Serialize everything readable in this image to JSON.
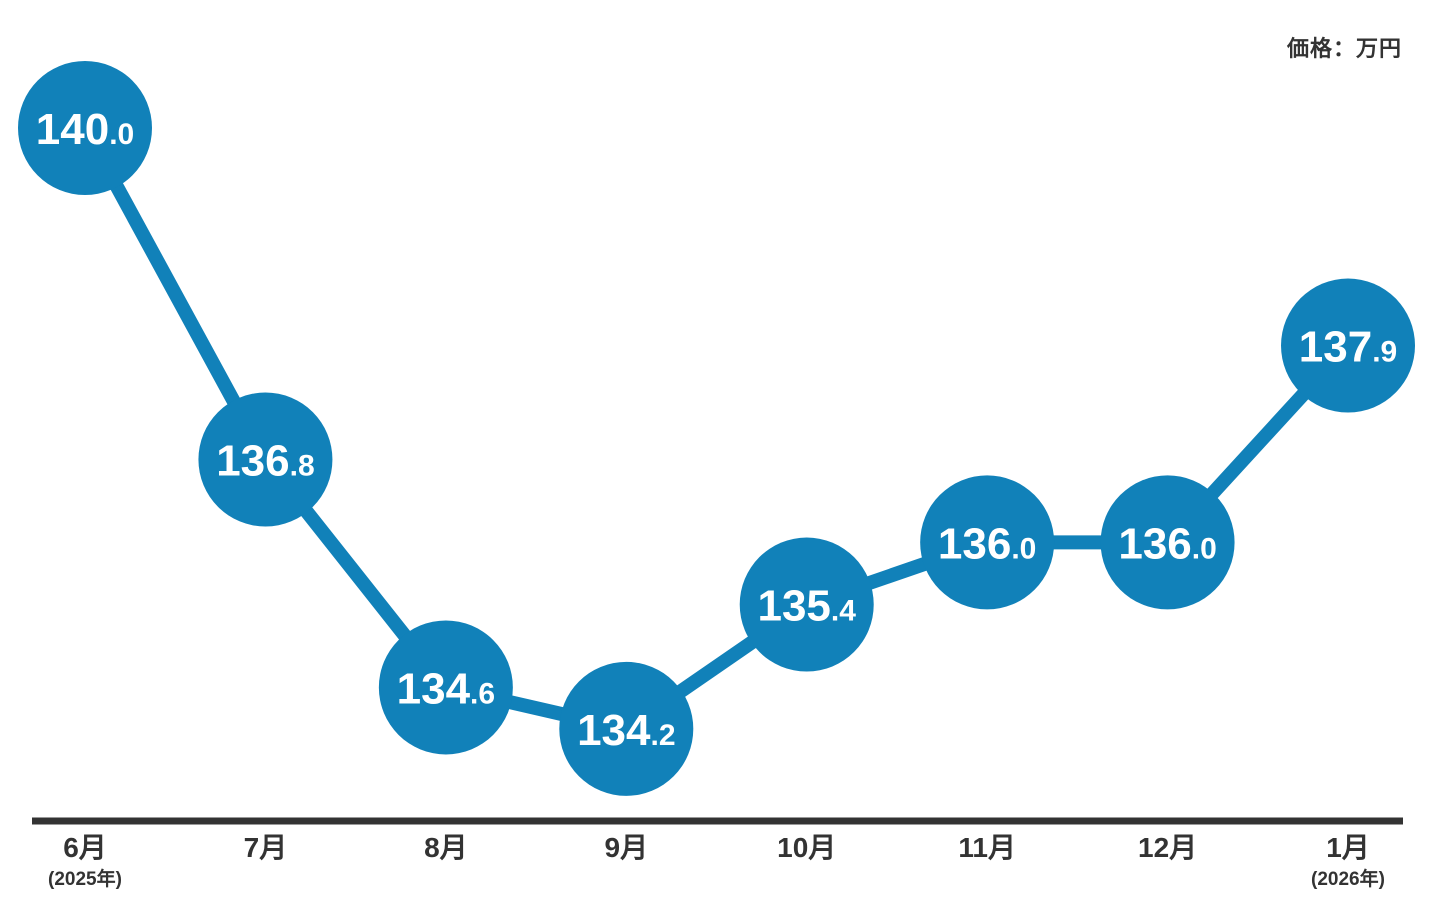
{
  "unit_label": "価格：万円",
  "chart_data": {
    "type": "line",
    "title": "",
    "xlabel": "",
    "ylabel": "価格（万円）",
    "categories": [
      "6月",
      "7月",
      "8月",
      "9月",
      "10月",
      "11月",
      "12月",
      "1月"
    ],
    "category_sub_labels": [
      "(2025年)",
      "",
      "",
      "",
      "",
      "",
      "",
      "(2026年)"
    ],
    "series": [
      {
        "name": "価格",
        "values": [
          140.0,
          136.8,
          134.6,
          134.2,
          135.4,
          136.0,
          136.0,
          137.9
        ]
      }
    ],
    "value_labels_shown": true,
    "value_decimals": 1,
    "ylim": [
      133.0,
      141.0
    ],
    "grid": false,
    "legend_position": "none",
    "accent_color": "#1181B9",
    "bubble_text_color": "#ffffff",
    "axis_color": "#333333",
    "label_color": "#333333"
  }
}
